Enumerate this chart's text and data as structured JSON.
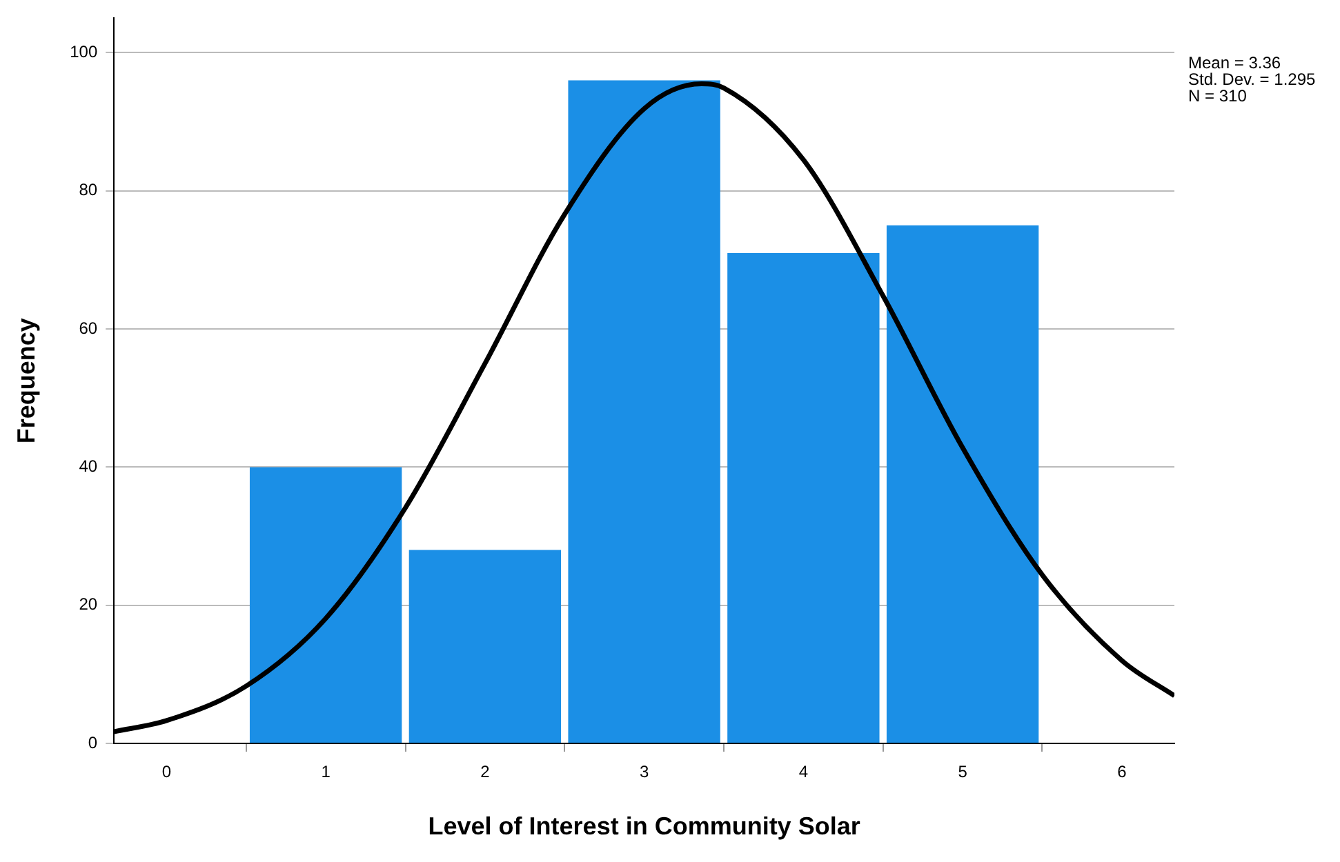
{
  "chart_data": {
    "type": "histogram",
    "xlabel": "Level of Interest in Community Solar",
    "ylabel": "Frequency",
    "bins": [
      0.5,
      1.5,
      2.5,
      3.5,
      4.5,
      5.5
    ],
    "values": [
      40,
      28,
      96,
      71,
      75
    ],
    "color": "#1b8fe6",
    "series": [
      {
        "type": "line",
        "color": "#000000",
        "x": [
          -0.33,
          0,
          0.5,
          1,
          1.5,
          2,
          2.5,
          3,
          3.36,
          3.5,
          4,
          4.5,
          5,
          5.5,
          6,
          6.33
        ],
        "values": [
          1.7,
          3.3,
          8.3,
          18.1,
          34.1,
          55,
          76.6,
          91.9,
          95.5,
          94.9,
          84.5,
          64.8,
          42.8,
          24.4,
          12,
          6.9
        ]
      }
    ],
    "xlim": [
      -0.33,
      6.33
    ],
    "xticks": [
      0,
      1,
      2,
      3,
      4,
      5,
      6
    ],
    "ylim": [
      0,
      105
    ],
    "yticks": [
      0,
      20,
      40,
      60,
      80,
      100
    ],
    "grid": "y",
    "legend": false,
    "marker": "none",
    "line_style": "solid",
    "annotations": [
      "Mean = 3.36",
      "Std. Dev. = 1.295",
      "N = 310"
    ]
  }
}
